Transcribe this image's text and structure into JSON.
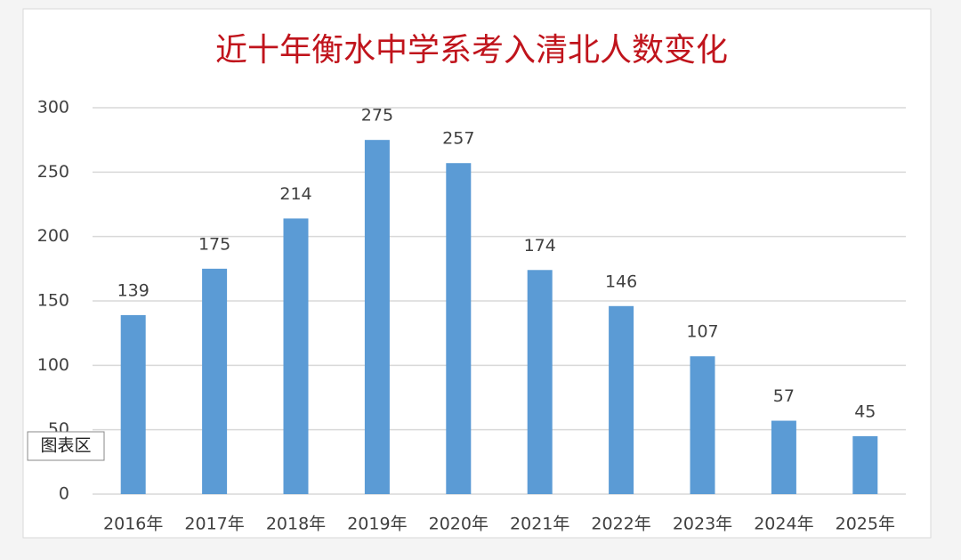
{
  "chart_data": {
    "type": "bar",
    "title": "近十年衡水中学系考入清北人数变化",
    "categories": [
      "2016年",
      "2017年",
      "2018年",
      "2019年",
      "2020年",
      "2021年",
      "2022年",
      "2023年",
      "2024年",
      "2025年"
    ],
    "values": [
      139,
      175,
      214,
      275,
      257,
      174,
      146,
      107,
      57,
      45
    ],
    "color": "#5b9bd5",
    "ylim": [
      0,
      300
    ],
    "yticks": [
      0,
      50,
      100,
      150,
      200,
      250,
      300
    ],
    "grid": true,
    "annotation": "图表区"
  }
}
